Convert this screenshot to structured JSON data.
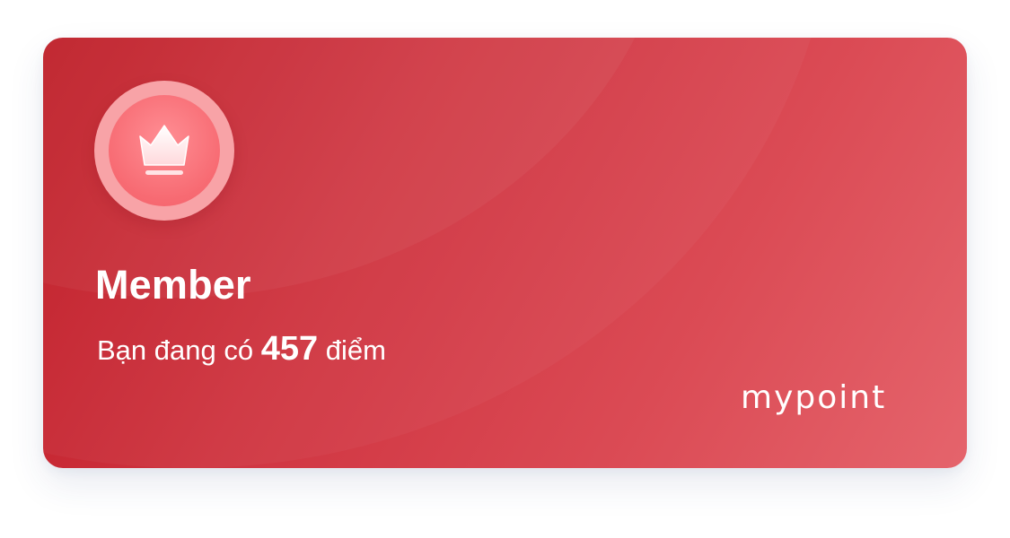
{
  "card": {
    "tier": "Member",
    "points_prefix": "Bạn đang có",
    "points_value": "457",
    "points_suffix": "điểm",
    "brand": "mypoint",
    "badge_icon": "crown-icon",
    "colors": {
      "card_start": "#bd1822",
      "card_end": "#e5646c",
      "badge_ring": "#f8a3a7",
      "badge_fill": "#f76a72",
      "text": "#ffffff"
    }
  }
}
